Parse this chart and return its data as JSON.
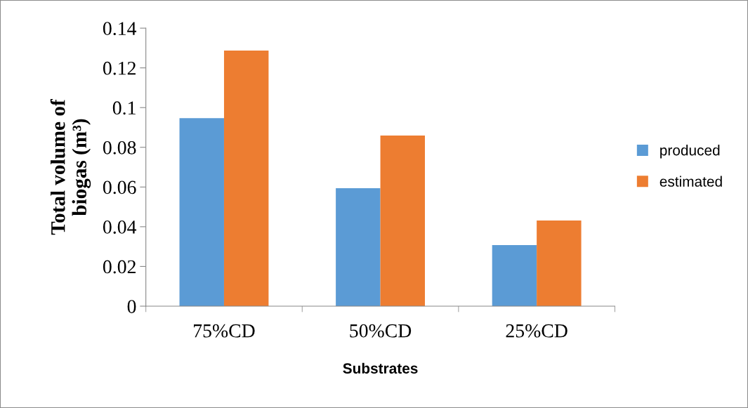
{
  "chart_data": {
    "type": "bar",
    "xlabel": "Substrates",
    "ylabel": "Total volume of\nbiogas (m³)",
    "categories": [
      "75%CD",
      "50%CD",
      "25%CD"
    ],
    "series": [
      {
        "name": "produced",
        "color": "#5b9bd5",
        "values": [
          0.0947,
          0.0594,
          0.0308
        ]
      },
      {
        "name": "estimated",
        "color": "#ed7d31",
        "values": [
          0.1287,
          0.0859,
          0.0431
        ]
      }
    ],
    "ylim": [
      0,
      0.14
    ],
    "yticks": [
      {
        "value": 0,
        "label": "0"
      },
      {
        "value": 0.02,
        "label": "0.02"
      },
      {
        "value": 0.04,
        "label": "0.04"
      },
      {
        "value": 0.06,
        "label": "0.06"
      },
      {
        "value": 0.08,
        "label": "0.08"
      },
      {
        "value": 0.1,
        "label": "0.1"
      },
      {
        "value": 0.12,
        "label": "0.12"
      },
      {
        "value": 0.14,
        "label": "0.14"
      }
    ],
    "grid": false,
    "legend": "right"
  }
}
